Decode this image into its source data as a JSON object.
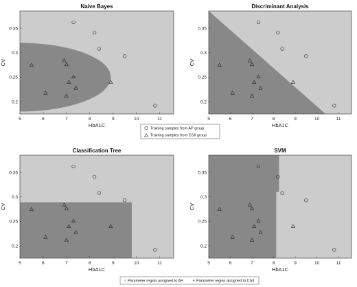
{
  "chart_data": [
    {
      "type": "scatter",
      "title": "Naive Bayes",
      "xlabel": "HbA1C",
      "ylabel": "CV",
      "xlim": [
        5,
        11.6
      ],
      "ylim": [
        0.175,
        0.385
      ],
      "xticks": [
        "5",
        "6",
        "7",
        "8",
        "9",
        "10",
        "11"
      ],
      "yticks": [
        "0.2",
        "0.25",
        "0.3",
        "0.35"
      ],
      "region": {
        "kind": "ellipse",
        "cx": 5.0,
        "cy": 0.25,
        "rx": 3.9,
        "ry": 0.07
      },
      "series": [
        {
          "name": "Training samples from AP group",
          "marker": "circle",
          "points": [
            [
              7.3,
              0.362
            ],
            [
              8.2,
              0.341
            ],
            [
              8.4,
              0.308
            ],
            [
              9.5,
              0.293
            ],
            [
              10.8,
              0.192
            ]
          ]
        },
        {
          "name": "Training samples from CSII group",
          "marker": "triangle",
          "points": [
            [
              5.5,
              0.275
            ],
            [
              6.9,
              0.284
            ],
            [
              7.0,
              0.276
            ],
            [
              7.3,
              0.251
            ],
            [
              7.1,
              0.24
            ],
            [
              8.9,
              0.24
            ],
            [
              7.4,
              0.228
            ],
            [
              6.1,
              0.218
            ],
            [
              7.0,
              0.212
            ]
          ]
        }
      ]
    },
    {
      "type": "scatter",
      "title": "Discriminant Analysis",
      "xlabel": "HbA1C",
      "ylabel": "CV",
      "xlim": [
        5,
        11.6
      ],
      "ylim": [
        0.175,
        0.385
      ],
      "xticks": [
        "5",
        "6",
        "7",
        "8",
        "9",
        "10",
        "11"
      ],
      "yticks": [
        "0.2",
        "0.25",
        "0.3",
        "0.35"
      ],
      "region": {
        "kind": "line",
        "p1": [
          5.0,
          0.385
        ],
        "p2": [
          10.4,
          0.175
        ]
      },
      "series": [
        {
          "name": "Training samples from AP group",
          "marker": "circle",
          "points": [
            [
              7.3,
              0.362
            ],
            [
              8.2,
              0.341
            ],
            [
              8.4,
              0.308
            ],
            [
              9.5,
              0.293
            ],
            [
              10.8,
              0.192
            ]
          ]
        },
        {
          "name": "Training samples from CSII group",
          "marker": "triangle",
          "points": [
            [
              5.5,
              0.275
            ],
            [
              6.9,
              0.284
            ],
            [
              7.0,
              0.276
            ],
            [
              7.3,
              0.251
            ],
            [
              7.1,
              0.24
            ],
            [
              8.9,
              0.24
            ],
            [
              7.4,
              0.228
            ],
            [
              6.1,
              0.218
            ],
            [
              7.0,
              0.212
            ]
          ]
        }
      ]
    },
    {
      "type": "scatter",
      "title": "Classification Tree",
      "xlabel": "HbA1C",
      "ylabel": "CV",
      "xlim": [
        5,
        11.6
      ],
      "ylim": [
        0.175,
        0.385
      ],
      "xticks": [
        "5",
        "6",
        "7",
        "8",
        "9",
        "10",
        "11"
      ],
      "yticks": [
        "0.2",
        "0.25",
        "0.3",
        "0.35"
      ],
      "region": {
        "kind": "rect",
        "x0": 5.0,
        "x1": 9.8,
        "y0": 0.175,
        "y1": 0.289
      },
      "series": [
        {
          "name": "Training samples from AP group",
          "marker": "circle",
          "points": [
            [
              7.3,
              0.362
            ],
            [
              8.2,
              0.341
            ],
            [
              8.4,
              0.308
            ],
            [
              9.5,
              0.293
            ],
            [
              10.8,
              0.192
            ]
          ]
        },
        {
          "name": "Training samples from CSII group",
          "marker": "triangle",
          "points": [
            [
              5.5,
              0.275
            ],
            [
              6.9,
              0.284
            ],
            [
              7.0,
              0.276
            ],
            [
              7.3,
              0.251
            ],
            [
              7.1,
              0.24
            ],
            [
              8.9,
              0.24
            ],
            [
              7.4,
              0.228
            ],
            [
              6.1,
              0.218
            ],
            [
              7.0,
              0.212
            ]
          ]
        }
      ]
    },
    {
      "type": "scatter",
      "title": "SVM",
      "xlabel": "HbA1C",
      "ylabel": "CV",
      "xlim": [
        5,
        11.6
      ],
      "ylim": [
        0.175,
        0.385
      ],
      "xticks": [
        "5",
        "6",
        "7",
        "8",
        "9",
        "10",
        "11"
      ],
      "yticks": [
        "0.2",
        "0.25",
        "0.3",
        "0.35"
      ],
      "region": {
        "kind": "stepx",
        "x0": 5.0,
        "xa": 8.25,
        "xb": 8.12,
        "ysplit": 0.31,
        "y0": 0.175,
        "y1": 0.385
      },
      "series": [
        {
          "name": "Training samples from AP group",
          "marker": "circle",
          "points": [
            [
              7.3,
              0.362
            ],
            [
              8.2,
              0.341
            ],
            [
              8.4,
              0.308
            ],
            [
              9.5,
              0.293
            ],
            [
              10.8,
              0.192
            ]
          ]
        },
        {
          "name": "Training samples from CSII group",
          "marker": "triangle",
          "points": [
            [
              5.5,
              0.275
            ],
            [
              6.9,
              0.284
            ],
            [
              7.0,
              0.276
            ],
            [
              7.3,
              0.251
            ],
            [
              7.1,
              0.24
            ],
            [
              8.9,
              0.24
            ],
            [
              7.4,
              0.228
            ],
            [
              6.1,
              0.218
            ],
            [
              7.0,
              0.212
            ]
          ]
        }
      ]
    }
  ],
  "legend_samples": {
    "ap": "Training samples from AP group",
    "csii": "Training samples from CSII group"
  },
  "legend_regions": {
    "ap": "Parameter region assigned to AP",
    "csii": "Parameter region assigned to CSII"
  },
  "colors": {
    "ap_region": "#cccccc",
    "csii_region": "#888888",
    "marker": "#222222"
  }
}
